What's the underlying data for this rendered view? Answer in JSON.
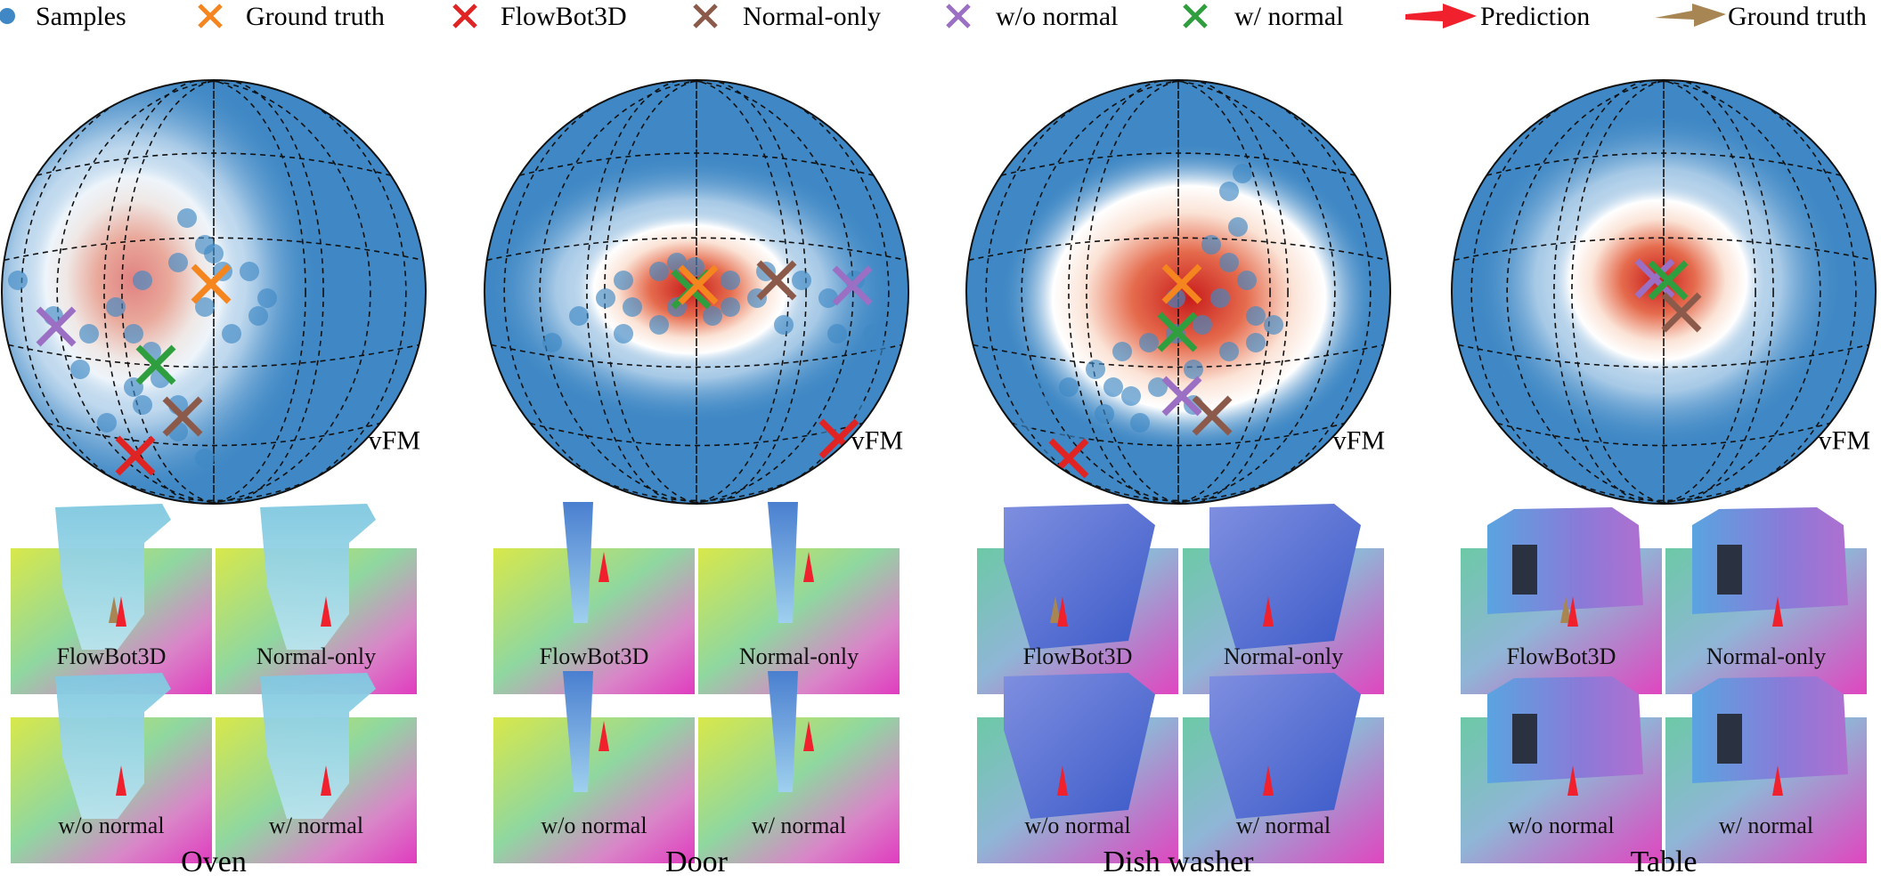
{
  "legend": [
    {
      "name": "legend-samples",
      "marker": "dot",
      "color": "#3f88c5",
      "label": "Samples"
    },
    {
      "name": "legend-ground-truth",
      "marker": "x",
      "color": "#f5851f",
      "label": "Ground truth"
    },
    {
      "name": "legend-flowbot3d",
      "marker": "x",
      "color": "#e02424",
      "label": "FlowBot3D"
    },
    {
      "name": "legend-normal-only",
      "marker": "x",
      "color": "#8b5a4a",
      "label": "Normal-only"
    },
    {
      "name": "legend-wo-normal",
      "marker": "x",
      "color": "#9b6fc4",
      "label": "w/o normal"
    },
    {
      "name": "legend-w-normal",
      "marker": "x",
      "color": "#2e9e3e",
      "label": "w/ normal"
    },
    {
      "name": "legend-prediction",
      "marker": "arrow",
      "color": "#f0202c",
      "label": "Prediction"
    },
    {
      "name": "legend-ground-truth-arrow",
      "marker": "arrow",
      "color": "#a88654",
      "label": "Ground truth"
    }
  ],
  "colors": {
    "sphere_blue": "#3f88c5",
    "density_white": "#ffffff",
    "density_red": "#c81b1b",
    "gt": "#f5851f",
    "flowbot": "#e02424",
    "normal_only": "#8b5a4a",
    "wo_normal": "#9b6fc4",
    "w_normal": "#2e9e3e",
    "pred_arrow": "#f0202c",
    "gt_arrow": "#a88654"
  },
  "sphere_label": "vFM",
  "panels": [
    {
      "category": "Oven",
      "renders": {
        "top_left": "FlowBot3D",
        "top_right": "Normal-only",
        "bottom_left": "w/o normal",
        "bottom_right": "w/ normal"
      }
    },
    {
      "category": "Door",
      "renders": {
        "top_left": "FlowBot3D",
        "top_right": "Normal-only",
        "bottom_left": "w/o normal",
        "bottom_right": "w/ normal"
      }
    },
    {
      "category": "Dish washer",
      "renders": {
        "top_left": "FlowBot3D",
        "top_right": "Normal-only",
        "bottom_left": "w/o normal",
        "bottom_right": "w/ normal"
      }
    },
    {
      "category": "Table",
      "renders": {
        "top_left": "FlowBot3D",
        "top_right": "Normal-only",
        "bottom_left": "w/o normal",
        "bottom_right": "w/ normal"
      }
    }
  ]
}
